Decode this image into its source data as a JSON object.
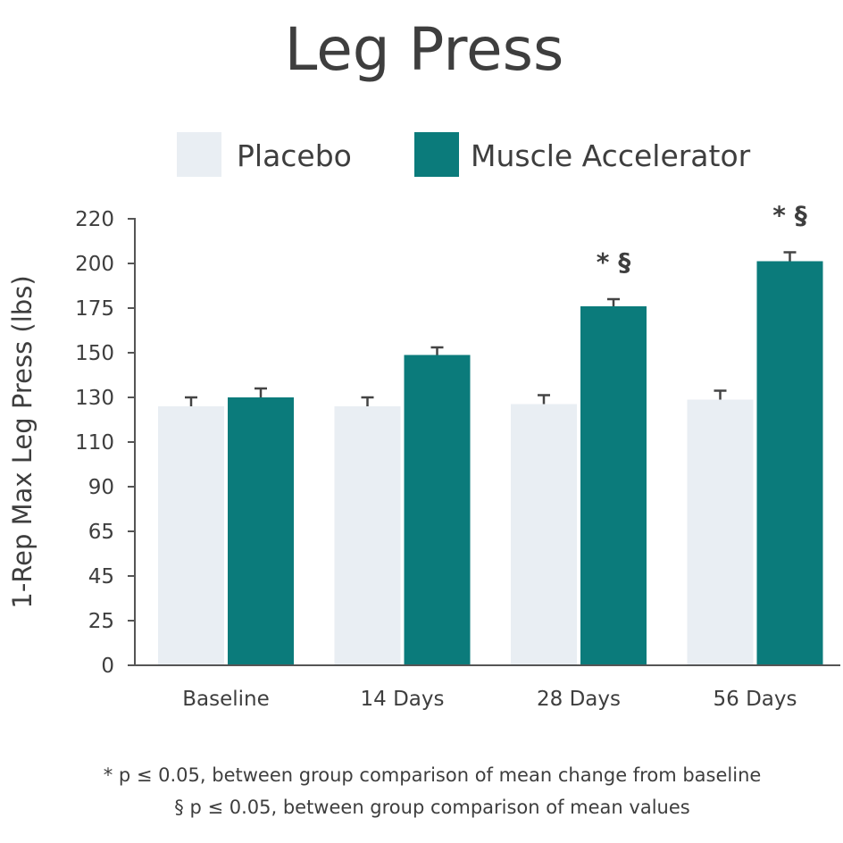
{
  "chart_data": {
    "type": "bar",
    "title": "Leg Press",
    "ylabel": "1-Rep Max Leg Press (lbs)",
    "xlabel": "",
    "categories": [
      "Baseline",
      "14 Days",
      "28 Days",
      "56 Days"
    ],
    "y_ticks": [
      "0",
      "25",
      "45",
      "65",
      "90",
      "110",
      "130",
      "150",
      "175",
      "200",
      "220"
    ],
    "series": [
      {
        "name": "Placebo",
        "color": "#e9eef3",
        "values": [
          126,
          126,
          127,
          129
        ],
        "errors": [
          4,
          4,
          4,
          4
        ]
      },
      {
        "name": "Muscle Accelerator",
        "color": "#0b7b7b",
        "values": [
          130,
          149,
          176,
          201
        ],
        "errors": [
          4,
          4,
          4,
          4
        ]
      }
    ],
    "annotations": [
      "",
      "",
      "* §",
      "* §"
    ],
    "legend_position": "top",
    "grid": false
  },
  "footnotes": [
    "* p ≤ 0.05, between group comparison of mean change from baseline",
    "§ p ≤ 0.05, between group comparison of mean values"
  ]
}
